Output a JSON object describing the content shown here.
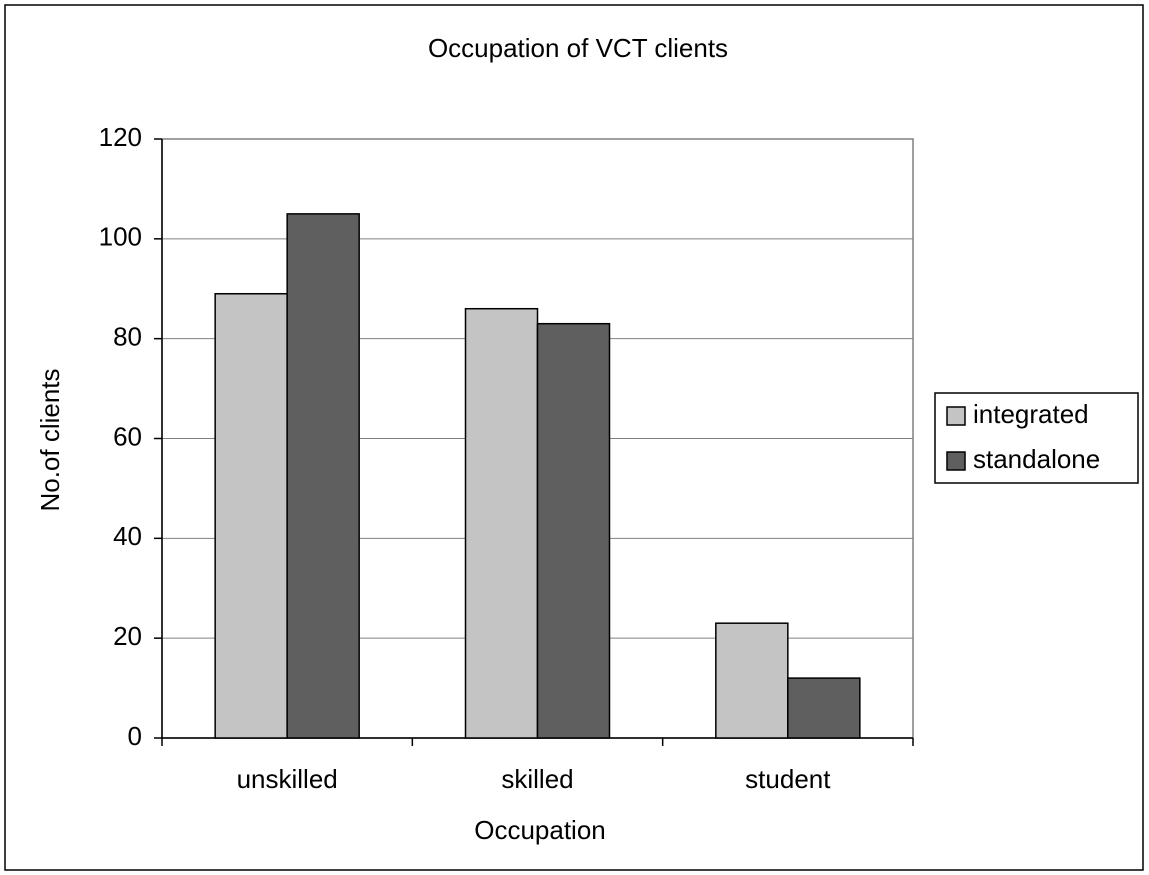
{
  "chart_data": {
    "type": "bar",
    "title": "Occupation of VCT clients",
    "x_label": "Occupation",
    "y_label": "No.of clients",
    "categories": [
      "unskilled",
      "skilled",
      "student"
    ],
    "series": [
      {
        "name": "integrated",
        "color": "#c4c4c4",
        "values": [
          89,
          86,
          23
        ]
      },
      {
        "name": "standalone",
        "color": "#5f5f5f",
        "values": [
          105,
          83,
          12
        ]
      }
    ],
    "ylim": [
      0,
      120
    ],
    "yticks": [
      0,
      20,
      40,
      60,
      80,
      100,
      120
    ],
    "grid": true,
    "legend": "right"
  }
}
